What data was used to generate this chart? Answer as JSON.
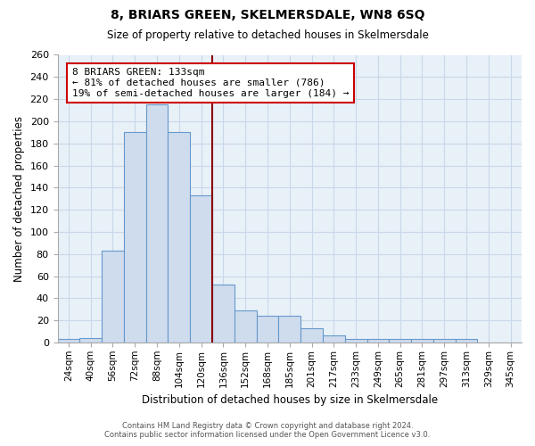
{
  "title": "8, BRIARS GREEN, SKELMERSDALE, WN8 6SQ",
  "subtitle": "Size of property relative to detached houses in Skelmersdale",
  "xlabel": "Distribution of detached houses by size in Skelmersdale",
  "ylabel": "Number of detached properties",
  "bar_labels": [
    "24sqm",
    "40sqm",
    "56sqm",
    "72sqm",
    "88sqm",
    "104sqm",
    "120sqm",
    "136sqm",
    "152sqm",
    "168sqm",
    "185sqm",
    "201sqm",
    "217sqm",
    "233sqm",
    "249sqm",
    "265sqm",
    "281sqm",
    "297sqm",
    "313sqm",
    "329sqm",
    "345sqm"
  ],
  "bar_values": [
    3,
    4,
    83,
    190,
    215,
    190,
    133,
    52,
    29,
    24,
    24,
    13,
    6,
    3,
    3,
    3,
    3,
    3,
    3,
    0,
    0
  ],
  "bar_color": "#cfdcee",
  "bar_edge_color": "#6699cc",
  "marker_line_color": "#8b0000",
  "annotation_title": "8 BRIARS GREEN: 133sqm",
  "annotation_line1": "← 81% of detached houses are smaller (786)",
  "annotation_line2": "19% of semi-detached houses are larger (184) →",
  "annotation_box_color": "#ffffff",
  "annotation_box_edge": "#cc0000",
  "ylim": [
    0,
    260
  ],
  "yticks": [
    0,
    20,
    40,
    60,
    80,
    100,
    120,
    140,
    160,
    180,
    200,
    220,
    240,
    260
  ],
  "footer_line1": "Contains HM Land Registry data © Crown copyright and database right 2024.",
  "footer_line2": "Contains public sector information licensed under the Open Government Licence v3.0.",
  "background_color": "#ffffff",
  "grid_color": "#c8d8e8",
  "plot_bg_color": "#e8f0f8"
}
